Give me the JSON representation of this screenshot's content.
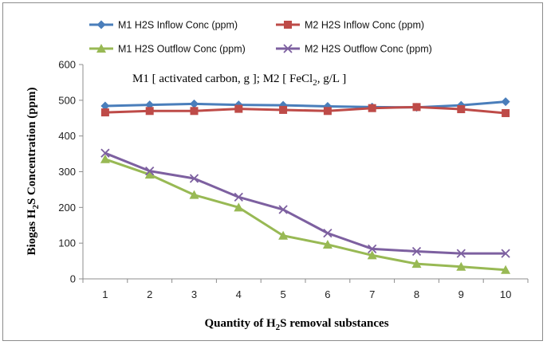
{
  "chart_data": {
    "type": "line",
    "title": "",
    "annotation": {
      "prefix": "M1 [ activated carbon, g ]; M2 [ FeCl",
      "subscript": "2",
      "suffix": ", g/L ]"
    },
    "xlabel": {
      "prefix": "Quantity of H",
      "subscript": "2",
      "suffix": "S removal substances"
    },
    "ylabel": {
      "prefix": "Biogas H",
      "subscript": "2",
      "suffix": "S Concentration (ppm)"
    },
    "categories": [
      "1",
      "2",
      "3",
      "4",
      "5",
      "6",
      "7",
      "8",
      "9",
      "10"
    ],
    "ylim": [
      0,
      600
    ],
    "yticks": [
      "0",
      "100",
      "200",
      "300",
      "400",
      "500",
      "600"
    ],
    "grid": false,
    "legend_position": "top",
    "series": [
      {
        "name": "M1 H2S Inflow Conc (ppm)",
        "color": "#4a7ebb",
        "marker": "diamond",
        "values": [
          484,
          487,
          490,
          487,
          486,
          483,
          481,
          480,
          486,
          496
        ]
      },
      {
        "name": "M2 H2S Inflow Conc (ppm)",
        "color": "#be4b48",
        "marker": "square",
        "values": [
          466,
          470,
          470,
          476,
          473,
          470,
          478,
          481,
          475,
          464
        ]
      },
      {
        "name": "M1 H2S Outflow Conc (ppm)",
        "color": "#98b954",
        "marker": "triangle",
        "values": [
          335,
          292,
          235,
          200,
          121,
          96,
          66,
          42,
          34,
          25
        ]
      },
      {
        "name": "M2 H2S Outflow Conc (ppm)",
        "color": "#7d60a0",
        "marker": "x",
        "values": [
          352,
          302,
          281,
          229,
          194,
          128,
          84,
          77,
          71,
          71
        ]
      }
    ]
  }
}
